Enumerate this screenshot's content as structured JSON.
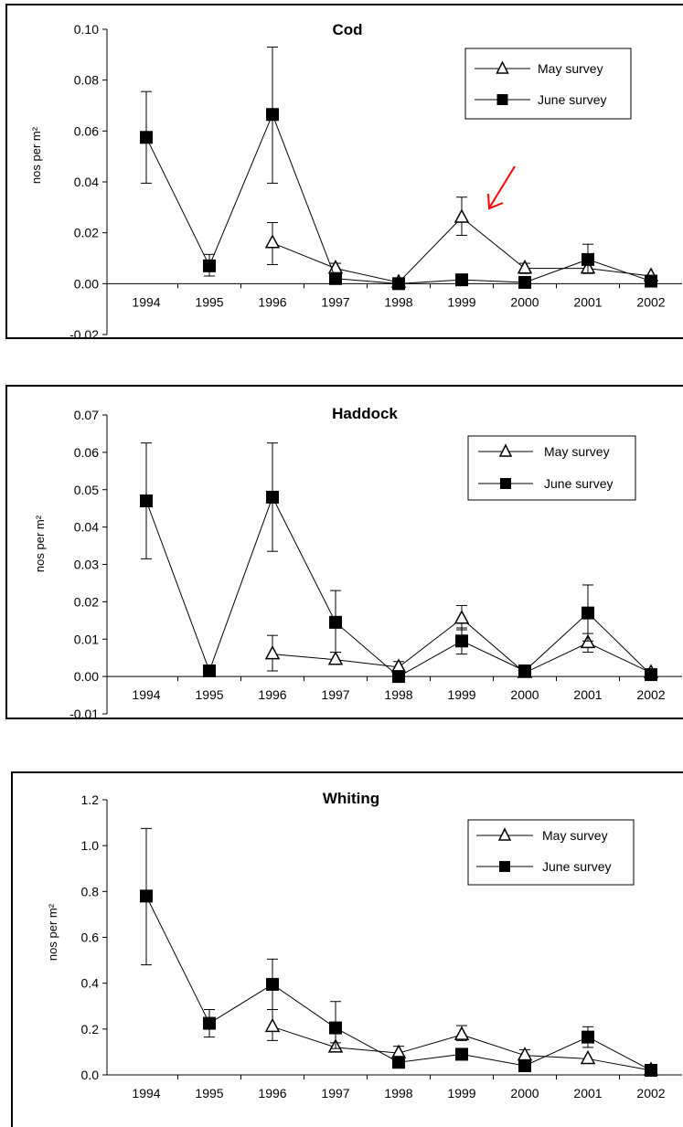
{
  "chart_data": [
    {
      "type": "line",
      "title": "Cod",
      "ylabel": "nos per m²",
      "xlabel": "",
      "categories": [
        "1994",
        "1995",
        "1996",
        "1997",
        "1998",
        "1999",
        "2000",
        "2001",
        "2002"
      ],
      "ylim": [
        -0.02,
        0.1
      ],
      "yticks": [
        "0.10",
        "0.08",
        "0.06",
        "0.04",
        "0.02",
        "0.00",
        "-0.02"
      ],
      "ytick_values": [
        0.1,
        0.08,
        0.06,
        0.04,
        0.02,
        0.0,
        -0.02
      ],
      "legend_position": "top-right",
      "grid": false,
      "annotation": "red arrow pointing at May survey 1999",
      "series": [
        {
          "name": "May survey",
          "marker": "open-triangle",
          "values": [
            null,
            null,
            0.016,
            0.006,
            0.0005,
            0.026,
            0.006,
            0.006,
            0.003
          ],
          "err_low": [
            null,
            null,
            0.0075,
            0.004,
            null,
            0.019,
            0.004,
            null,
            null
          ],
          "err_high": [
            null,
            null,
            0.024,
            0.008,
            null,
            0.034,
            0.008,
            null,
            null
          ]
        },
        {
          "name": "June survey",
          "marker": "filled-square",
          "values": [
            0.0575,
            0.007,
            0.0665,
            0.002,
            0.0,
            0.0015,
            0.0005,
            0.0095,
            0.001
          ],
          "err_low": [
            0.0395,
            0.003,
            0.0395,
            null,
            null,
            null,
            null,
            0.004,
            null
          ],
          "err_high": [
            0.0755,
            0.0115,
            0.093,
            null,
            null,
            null,
            null,
            0.0155,
            null
          ]
        }
      ]
    },
    {
      "type": "line",
      "title": "Haddock",
      "ylabel": "nos per m²",
      "xlabel": "",
      "categories": [
        "1994",
        "1995",
        "1996",
        "1997",
        "1998",
        "1999",
        "2000",
        "2001",
        "2002"
      ],
      "ylim": [
        -0.01,
        0.07
      ],
      "yticks": [
        "0.07",
        "0.06",
        "0.05",
        "0.04",
        "0.03",
        "0.02",
        "0.01",
        "0.00",
        "-0.01"
      ],
      "ytick_values": [
        0.07,
        0.06,
        0.05,
        0.04,
        0.03,
        0.02,
        0.01,
        0.0,
        -0.01
      ],
      "legend_position": "top-right",
      "grid": false,
      "series": [
        {
          "name": "May survey",
          "marker": "open-triangle",
          "values": [
            null,
            null,
            0.006,
            0.0045,
            0.0025,
            0.0155,
            0.001,
            0.009,
            0.001
          ],
          "err_low": [
            null,
            null,
            0.0015,
            0.0035,
            null,
            0.0125,
            null,
            0.0065,
            null
          ],
          "err_high": [
            null,
            null,
            0.011,
            0.0065,
            0.004,
            0.019,
            null,
            0.0115,
            null
          ]
        },
        {
          "name": "June survey",
          "marker": "filled-square",
          "values": [
            0.047,
            0.0015,
            0.048,
            0.0145,
            0.0,
            0.0095,
            0.0015,
            0.017,
            0.0005
          ],
          "err_low": [
            0.0315,
            null,
            0.0335,
            0.0065,
            null,
            0.006,
            null,
            0.0095,
            null
          ],
          "err_high": [
            0.0625,
            null,
            0.0625,
            0.023,
            null,
            0.013,
            null,
            0.0245,
            null
          ]
        }
      ]
    },
    {
      "type": "line",
      "title": "Whiting",
      "ylabel": "nos per m²",
      "xlabel": "",
      "categories": [
        "1994",
        "1995",
        "1996",
        "1997",
        "1998",
        "1999",
        "2000",
        "2001",
        "2002"
      ],
      "ylim": [
        0.0,
        1.2
      ],
      "yticks": [
        "1.2",
        "1.0",
        "0.8",
        "0.6",
        "0.4",
        "0.2",
        "0.0"
      ],
      "ytick_values": [
        1.2,
        1.0,
        0.8,
        0.6,
        0.4,
        0.2,
        0.0
      ],
      "legend_position": "top-right",
      "grid": false,
      "series": [
        {
          "name": "May survey",
          "marker": "open-triangle",
          "values": [
            null,
            null,
            0.21,
            0.12,
            0.095,
            0.175,
            0.085,
            0.07,
            0.02
          ],
          "err_low": [
            null,
            null,
            0.15,
            0.1,
            0.065,
            0.15,
            0.06,
            null,
            null
          ],
          "err_high": [
            null,
            null,
            0.285,
            0.14,
            0.125,
            0.215,
            0.11,
            null,
            null
          ]
        },
        {
          "name": "June survey",
          "marker": "filled-square",
          "values": [
            0.78,
            0.225,
            0.395,
            0.205,
            0.055,
            0.09,
            0.04,
            0.165,
            0.02
          ],
          "err_low": [
            0.48,
            0.165,
            0.285,
            0.115,
            null,
            null,
            null,
            0.12,
            null
          ],
          "err_high": [
            1.075,
            0.285,
            0.505,
            0.32,
            null,
            null,
            null,
            0.21,
            null
          ]
        }
      ]
    }
  ],
  "colors": {
    "line": "#000000",
    "annotation_arrow": "#ff0000",
    "background": "#ffffff"
  }
}
